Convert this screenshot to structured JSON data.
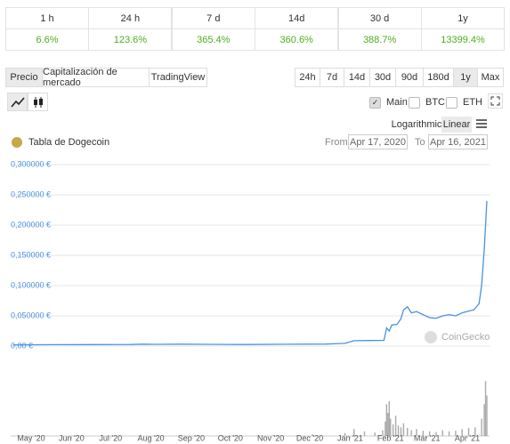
{
  "performance": {
    "headers": [
      "1 h",
      "24 h",
      "7 d",
      "14d",
      "30 d",
      "1y"
    ],
    "values": [
      "6.6%",
      "123.6%",
      "365.4%",
      "360.6%",
      "388.7%",
      "13399.4%"
    ]
  },
  "tabs": [
    "Precio",
    "Capitalización de mercado",
    "TradingView"
  ],
  "active_tab": 0,
  "ranges": [
    "24h",
    "7d",
    "14d",
    "30d",
    "90d",
    "180d",
    "1y",
    "Max"
  ],
  "active_range": 6,
  "series_toggles": [
    "Main",
    "BTC",
    "ETH"
  ],
  "checked_toggle": 0,
  "scale_options": [
    "Logarithmic",
    "Linear"
  ],
  "active_scale": 1,
  "chart_title": "Tabla de Dogecoin",
  "date_range": {
    "from_label": "From",
    "from": "Apr 17, 2020",
    "to_label": "To",
    "to": "Apr 16, 2021"
  },
  "watermark": "CoinGecko",
  "chart": {
    "type": "line",
    "color": "#4a90e2",
    "grid": true,
    "x": [
      0,
      30,
      60,
      90,
      100,
      110,
      130,
      150,
      180,
      210,
      240,
      255,
      262,
      275,
      285,
      287,
      289,
      291,
      295,
      298,
      300,
      303,
      306,
      310,
      315,
      320,
      325,
      330,
      335,
      340,
      345,
      350,
      354,
      358,
      360,
      362,
      364
    ],
    "values": [
      0.0021,
      0.0024,
      0.0025,
      0.0026,
      0.0032,
      0.003,
      0.0033,
      0.0029,
      0.0026,
      0.0031,
      0.0034,
      0.0046,
      0.009,
      0.0092,
      0.0095,
      0.03,
      0.025,
      0.035,
      0.036,
      0.045,
      0.06,
      0.065,
      0.055,
      0.057,
      0.052,
      0.047,
      0.046,
      0.05,
      0.052,
      0.05,
      0.055,
      0.058,
      0.06,
      0.07,
      0.1,
      0.16,
      0.24
    ],
    "xlim": [
      0,
      364
    ],
    "ylim": [
      0,
      0.3
    ],
    "yticks": [
      {
        "value": 0,
        "label": "0,00 €"
      },
      {
        "value": 0.05,
        "label": "0,050000 €"
      },
      {
        "value": 0.1,
        "label": "0,100000 €"
      },
      {
        "value": 0.15,
        "label": "0,150000 €"
      },
      {
        "value": 0.2,
        "label": "0,200000 €"
      },
      {
        "value": 0.25,
        "label": "0,250000 €"
      },
      {
        "value": 0.3,
        "label": "0,300000 €"
      }
    ],
    "xticks": [
      {
        "value": 14,
        "label": "May '20"
      },
      {
        "value": 45,
        "label": "Jun '20"
      },
      {
        "value": 75,
        "label": "Jul '20"
      },
      {
        "value": 106,
        "label": "Aug '20"
      },
      {
        "value": 137,
        "label": "Sep '20"
      },
      {
        "value": 167,
        "label": "Oct '20"
      },
      {
        "value": 198,
        "label": "Nov '20"
      },
      {
        "value": 228,
        "label": "Dec '20"
      },
      {
        "value": 259,
        "label": "Jan '21"
      },
      {
        "value": 290,
        "label": "Feb '21"
      },
      {
        "value": 318,
        "label": "Mar '21"
      },
      {
        "value": 349,
        "label": "Apr '21"
      }
    ],
    "volume": {
      "color": "#aaa",
      "ylim": [
        0,
        100
      ],
      "x": [
        200,
        230,
        255,
        262,
        270,
        278,
        284,
        286,
        287,
        288,
        289,
        290,
        292,
        294,
        296,
        298,
        300,
        303,
        306,
        310,
        315,
        320,
        325,
        330,
        335,
        340,
        345,
        350,
        355,
        360,
        362,
        363,
        364
      ],
      "values": [
        2,
        3,
        5,
        12,
        8,
        6,
        10,
        25,
        55,
        40,
        60,
        30,
        20,
        35,
        18,
        15,
        22,
        14,
        10,
        12,
        9,
        8,
        7,
        10,
        8,
        9,
        12,
        14,
        15,
        30,
        55,
        95,
        70
      ]
    }
  }
}
